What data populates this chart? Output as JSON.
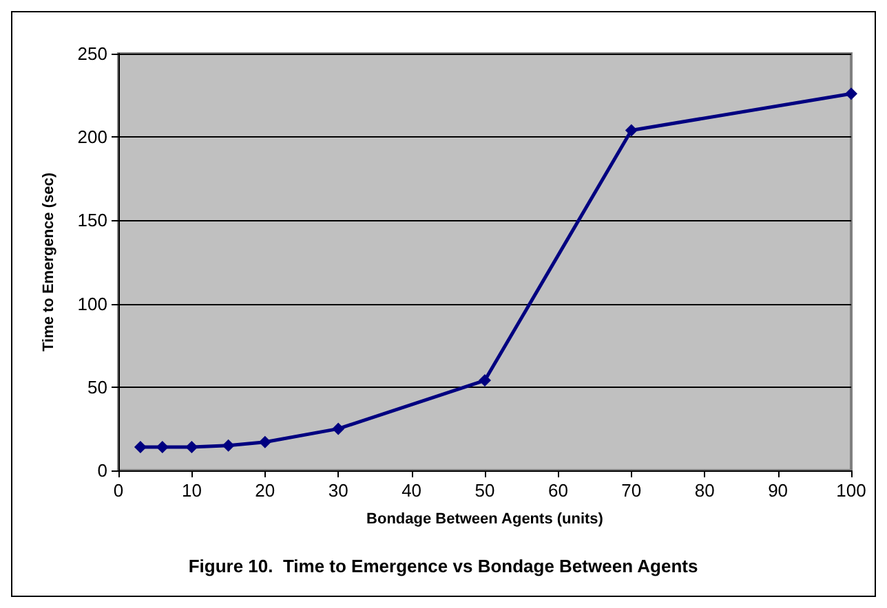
{
  "chart_data": {
    "type": "line",
    "xlabel": "Bondage Between Agents (units)",
    "ylabel": "Time to Emergence (sec)",
    "annotations": [
      "Figure 10.  Time to Emergence vs Bondage Between Agents"
    ],
    "x": [
      3,
      6,
      10,
      15,
      20,
      30,
      50,
      70,
      100
    ],
    "series": [
      {
        "color": "#000080",
        "values": [
          14,
          14,
          14,
          15,
          17,
          25,
          54,
          204,
          226
        ]
      }
    ],
    "xlim": [
      0,
      100
    ],
    "xticks": [
      0,
      10,
      20,
      30,
      40,
      50,
      60,
      70,
      80,
      90,
      100
    ],
    "ylim": [
      0,
      250
    ],
    "yticks": [
      0,
      50,
      100,
      150,
      200,
      250
    ],
    "grid": "y",
    "marker": "diamond",
    "line_style": "solid"
  }
}
